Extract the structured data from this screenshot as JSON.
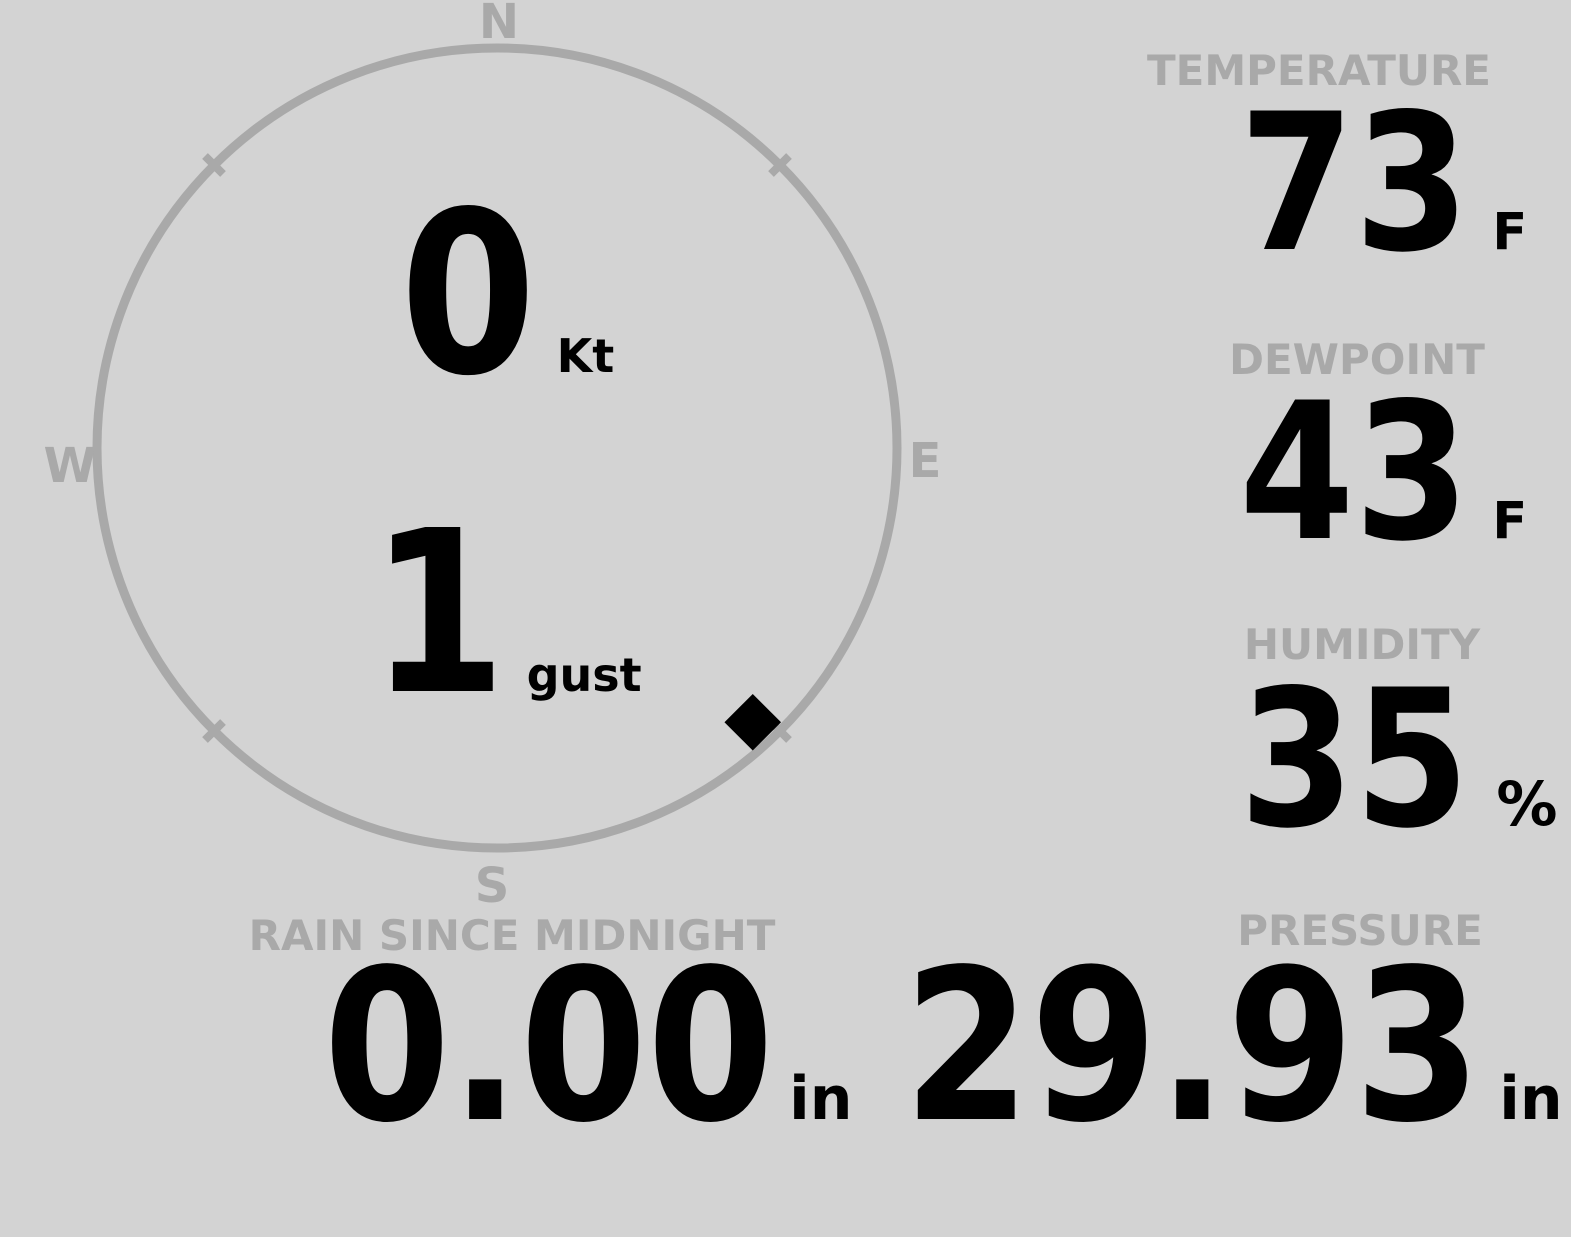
{
  "theme": {
    "background": "#d3d3d3",
    "muted": "#a9a9a9",
    "ink": "#000000"
  },
  "wind_compass": {
    "cardinal_labels": {
      "north": "N",
      "east": "E",
      "south": "S",
      "west": "W"
    },
    "speed": {
      "value": "0",
      "unit": "Kt"
    },
    "gust": {
      "value": "1",
      "unit": "gust"
    },
    "direction_marker": {
      "shape": "diamond",
      "bearing_deg": 137
    }
  },
  "metrics": {
    "temperature": {
      "label": "TEMPERATURE",
      "value": "73",
      "unit": "F"
    },
    "dewpoint": {
      "label": "DEWPOINT",
      "value": "43",
      "unit": "F"
    },
    "humidity": {
      "label": "HUMIDITY",
      "value": "35",
      "unit": "%"
    },
    "rain_since_midnight": {
      "label": "RAIN SINCE MIDNIGHT",
      "value": "0.00",
      "unit": "in"
    },
    "pressure": {
      "label": "PRESSURE",
      "value": "29.93",
      "unit": "in"
    }
  }
}
